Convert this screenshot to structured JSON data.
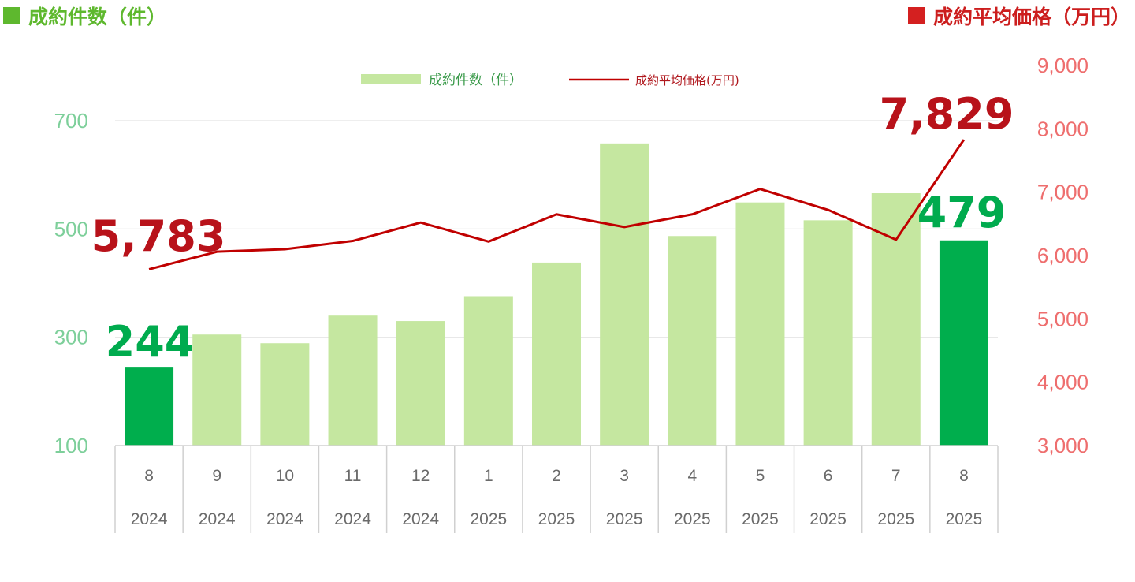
{
  "header": {
    "left_title": "成約件数（件）",
    "right_title": "成約平均価格（万円）"
  },
  "colors": {
    "bar": "#c5e7a0",
    "bar_highlight": "#00ae4d",
    "line": "#c00000",
    "left_axis": "#7dcf9a",
    "right_axis": "#ee6e6e",
    "grid": "#e4e4e4"
  },
  "chart_data": {
    "type": "bar",
    "categories": [
      "8",
      "9",
      "10",
      "11",
      "12",
      "1",
      "2",
      "3",
      "4",
      "5",
      "6",
      "7",
      "8"
    ],
    "years": [
      "2024",
      "2024",
      "2024",
      "2024",
      "2024",
      "2025",
      "2025",
      "2025",
      "2025",
      "2025",
      "2025",
      "2025",
      "2025"
    ],
    "series": [
      {
        "name": "成約件数（件）",
        "type": "bar",
        "axis": "left",
        "values": [
          244,
          305,
          289,
          340,
          330,
          376,
          438,
          658,
          487,
          549,
          516,
          566,
          479
        ],
        "highlight_indices": [
          0,
          12
        ]
      },
      {
        "name": "成約平均価格(万円)",
        "type": "line",
        "axis": "right",
        "values": [
          5783,
          6060,
          6100,
          6230,
          6520,
          6220,
          6650,
          6450,
          6650,
          7050,
          6720,
          6250,
          7829
        ]
      }
    ],
    "left_axis": {
      "ylim": [
        100,
        800
      ],
      "ticks": [
        "100",
        "300",
        "500",
        "700"
      ],
      "tick_values": [
        100,
        300,
        500,
        700
      ]
    },
    "right_axis": {
      "ylim": [
        3000,
        9000
      ],
      "ticks": [
        "3,000",
        "4,000",
        "5,000",
        "6,000",
        "7,000",
        "8,000",
        "9,000"
      ],
      "tick_values": [
        3000,
        4000,
        5000,
        6000,
        7000,
        8000,
        9000
      ]
    },
    "annotations": {
      "bar_first": "244",
      "bar_last": "479",
      "line_first": "5,783",
      "line_last": "7,829"
    },
    "legend_position": "top-center",
    "grid": true
  }
}
